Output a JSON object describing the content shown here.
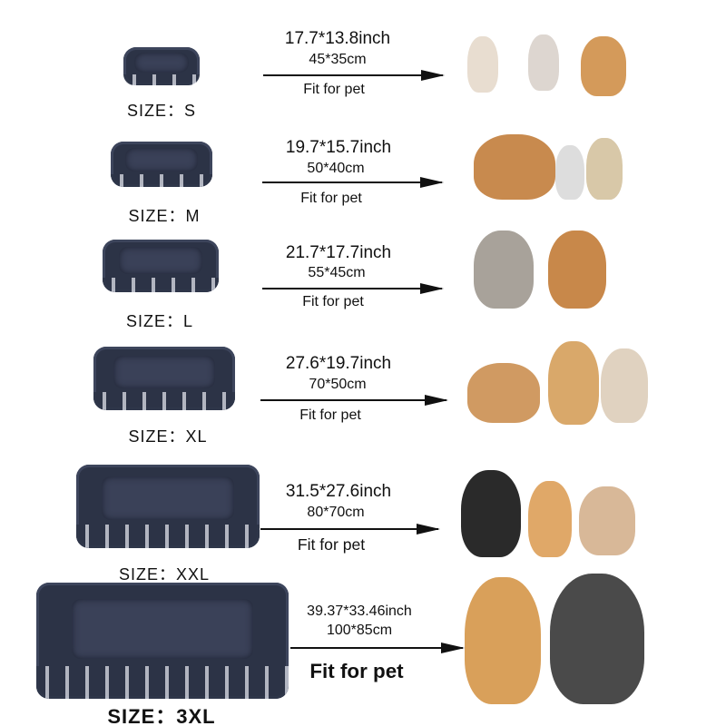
{
  "rows": [
    {
      "size": "SIZE：S",
      "inch": "17.7*13.8inch",
      "cm": "45*35cm",
      "fit": "Fit for pet"
    },
    {
      "size": "SIZE：M",
      "inch": "19.7*15.7inch",
      "cm": "50*40cm",
      "fit": "Fit for pet"
    },
    {
      "size": "SIZE：L",
      "inch": "21.7*17.7inch",
      "cm": "55*45cm",
      "fit": "Fit for pet"
    },
    {
      "size": "SIZE：XL",
      "inch": "27.6*19.7inch",
      "cm": "70*50cm",
      "fit": "Fit for pet"
    },
    {
      "size": "SIZE：XXL",
      "inch": "31.5*27.6inch",
      "cm": "80*70cm",
      "fit": "Fit for pet"
    },
    {
      "size": "SIZE：3XL",
      "inch": "39.37*33.46inch",
      "cm": "100*85cm",
      "fit": "Fit for pet"
    }
  ],
  "colors": {
    "bed": "#2c3346",
    "text": "#111111"
  }
}
